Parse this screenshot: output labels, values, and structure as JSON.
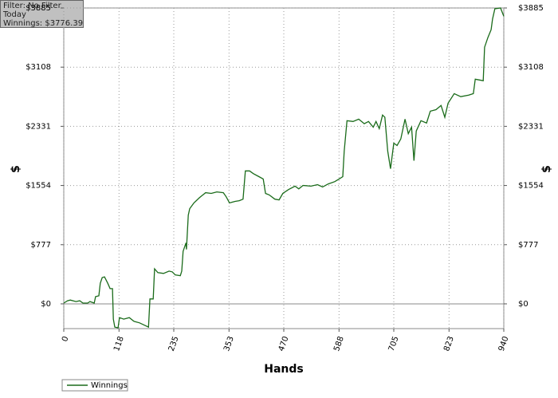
{
  "chart_data": {
    "type": "line",
    "annotations": [
      "Filter: No Filter",
      "Today",
      "Winnings: $3776.39"
    ],
    "x_label": "Hands",
    "y_label": "$",
    "x": [
      0,
      8,
      14,
      26,
      34,
      41,
      51,
      56,
      65,
      68,
      75,
      78,
      82,
      87,
      94,
      99,
      104,
      106,
      109,
      116,
      119,
      128,
      140,
      150,
      162,
      174,
      181,
      184,
      191,
      194,
      201,
      213,
      225,
      232,
      238,
      249,
      252,
      255,
      261,
      262,
      266,
      269,
      278,
      290,
      303,
      315,
      327,
      341,
      347,
      354,
      366,
      375,
      383,
      388,
      397,
      405,
      417,
      426,
      431,
      439,
      451,
      460,
      468,
      480,
      494,
      502,
      511,
      528,
      542,
      553,
      565,
      579,
      588,
      596,
      599,
      605,
      618,
      630,
      642,
      651,
      661,
      667,
      674,
      681,
      686,
      692,
      698,
      705,
      712,
      720,
      729,
      736,
      743,
      748,
      753,
      763,
      775,
      783,
      795,
      806,
      814,
      821,
      834,
      848,
      865,
      875,
      879,
      896,
      899,
      906,
      913,
      916,
      921,
      933,
      940
    ],
    "series": [
      {
        "name": "Winnings",
        "color": "#1a6b1a",
        "values": [
          10,
          40,
          50,
          30,
          40,
          10,
          10,
          30,
          10,
          95,
          105,
          270,
          345,
          355,
          270,
          200,
          200,
          -200,
          -305,
          -315,
          -180,
          -200,
          -180,
          -230,
          -250,
          -285,
          -305,
          65,
          65,
          460,
          410,
          400,
          430,
          420,
          380,
          370,
          430,
          690,
          800,
          715,
          1165,
          1250,
          1325,
          1395,
          1460,
          1450,
          1470,
          1460,
          1405,
          1325,
          1345,
          1355,
          1375,
          1745,
          1745,
          1710,
          1670,
          1640,
          1450,
          1430,
          1375,
          1365,
          1450,
          1500,
          1545,
          1510,
          1555,
          1545,
          1565,
          1535,
          1575,
          1605,
          1640,
          1670,
          2005,
          2405,
          2395,
          2425,
          2365,
          2395,
          2320,
          2395,
          2300,
          2480,
          2450,
          2005,
          1775,
          2110,
          2080,
          2165,
          2425,
          2235,
          2320,
          1880,
          2270,
          2405,
          2375,
          2530,
          2550,
          2605,
          2450,
          2635,
          2760,
          2720,
          2740,
          2760,
          2950,
          2930,
          3370,
          3495,
          3600,
          3740,
          3875,
          3885,
          3776
        ]
      }
    ],
    "xlim": [
      0,
      940
    ],
    "xticks": [
      0,
      118,
      235,
      353,
      470,
      588,
      705,
      823,
      940
    ],
    "ylim": [
      -325,
      3885
    ],
    "yticks": [
      {
        "value": 0,
        "label": "$0"
      },
      {
        "value": 777,
        "label": "$777"
      },
      {
        "value": 1554,
        "label": "$1554"
      },
      {
        "value": 2331,
        "label": "$2331"
      },
      {
        "value": 3108,
        "label": "$3108"
      },
      {
        "value": 3885,
        "label": "$3885"
      }
    ],
    "grid": true,
    "legend": "bottom-left"
  }
}
